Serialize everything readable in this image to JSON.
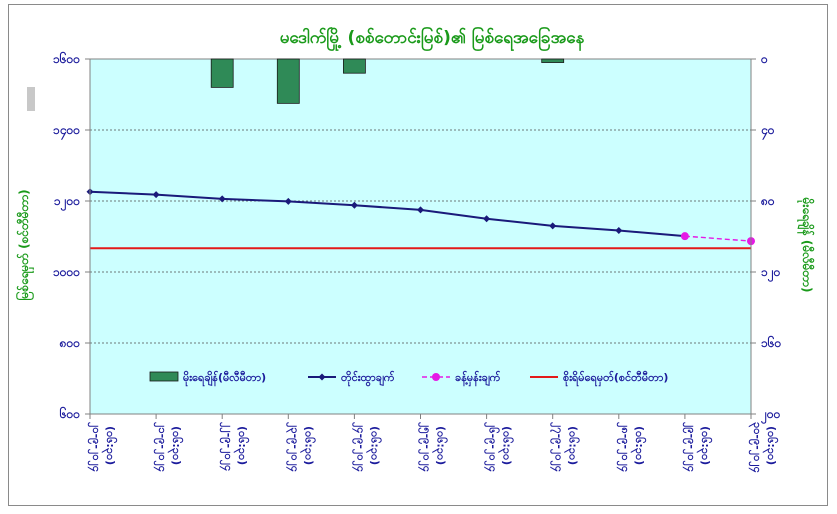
{
  "chart_data": {
    "type": "line",
    "title": "မဒေါက်မြို့ (စစ်တောင်းမြစ်)၏ မြစ်ရေအခြေအနေ",
    "ylabel_left": "မြစ်ရေမှတ် (စင်တီမီတာ)",
    "ylabel_right": "မိုးရေချိန် (မီလီမီတာ)",
    "y_left_ticks": [
      "၆၀၀",
      "၈၀၀",
      "၁၀၀၀",
      "၁၂၀၀",
      "၁၄၀၀",
      "၁၆၀၀"
    ],
    "y_right_ticks": [
      "၀",
      "၄၀",
      "၈၀",
      "၁၂၀",
      "၁၆၀",
      "၂၀၀"
    ],
    "y_left_range": [
      600,
      1600
    ],
    "y_right_range": [
      0,
      200
    ],
    "y_right_inverted": true,
    "grid": "horizontal",
    "legend_position": "bottom",
    "categories": [
      [
        "၂၀-၉-၂၀၂၄",
        "(၀၆:၃၀)"
      ],
      [
        "၂၁-၉-၂၀၂၄",
        "(၀၆:၃၀)"
      ],
      [
        "၂၂-၉-၂၀၂၄",
        "(၀၆:၃၀)"
      ],
      [
        "၂၃-၉-၂၀၂၄",
        "(၀၆:၃၀)"
      ],
      [
        "၂၄-၉-၂၀၂၄",
        "(၀၆:၃၀)"
      ],
      [
        "၂၅-၉-၂၀၂၄",
        "(၀၆:၃၀)"
      ],
      [
        "၂၆-၉-၂၀၂၄",
        "(၀၆:၃၀)"
      ],
      [
        "၂၇-၉-၂၀၂၄",
        "(၀၆:၃၀)"
      ],
      [
        "၂၈-၉-၂၀၂၄",
        "(၀၆:၃၀)"
      ],
      [
        "၂၉-၉-၂၀၂၄",
        "(၀၆:၃၀)"
      ],
      [
        "၃၀-၉-၂၀၂၄",
        "(၀၆:၃၀)"
      ]
    ],
    "series": [
      {
        "name": "မိုးရေချိန်(မီလီမီတာ)",
        "type": "bar",
        "axis": "right",
        "color": "#2f8a57",
        "values": [
          0,
          0,
          16,
          25,
          8,
          0,
          0,
          2,
          0,
          0,
          0
        ]
      },
      {
        "name": "တိုင်းထွာချက်",
        "type": "line",
        "axis": "left",
        "color": "#1a1a7a",
        "values": [
          1226,
          1218,
          1206,
          1199,
          1188,
          1175,
          1150,
          1130,
          1117,
          1101,
          null
        ]
      },
      {
        "name": "ခန့်မှန်းချက်",
        "type": "line-dashed",
        "axis": "left",
        "color": "#e51ae5",
        "values": [
          null,
          null,
          null,
          null,
          null,
          null,
          null,
          null,
          null,
          1101,
          1087
        ]
      },
      {
        "name": "စိုးရိမ်ရေမှတ်(စင်တီမီတာ)",
        "type": "hline",
        "axis": "left",
        "color": "#e31a1a",
        "value": 1067
      }
    ]
  }
}
